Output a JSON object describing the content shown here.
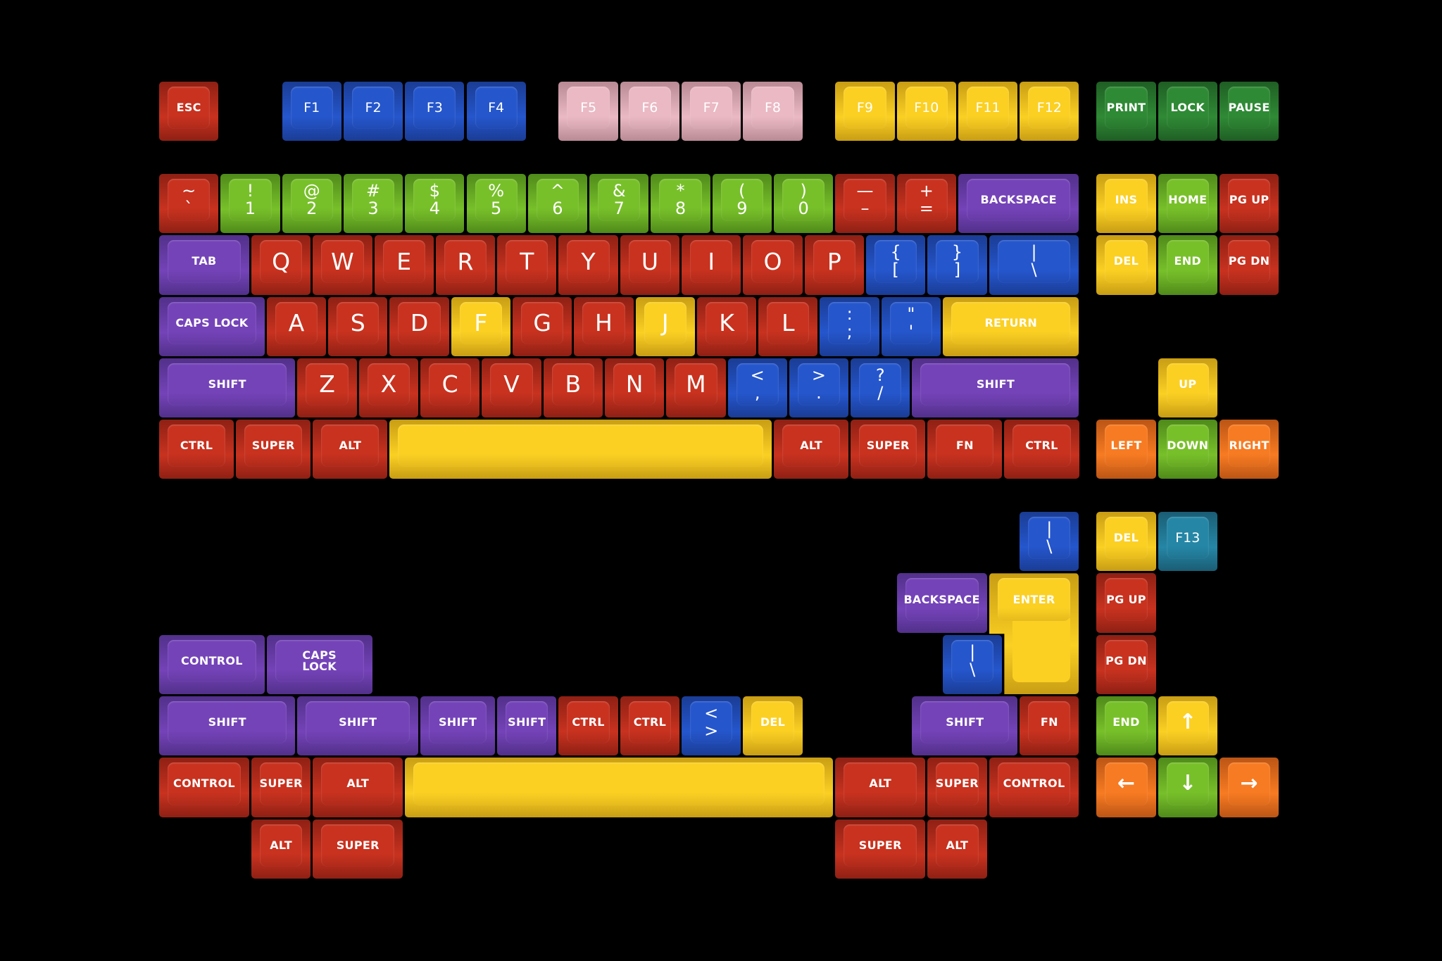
{
  "colors": {
    "red": [
      "#c8321f",
      "#8e2014"
    ],
    "green": [
      "#78c02a",
      "#4f8a1a"
    ],
    "blue": [
      "#2556cc",
      "#1a3c94"
    ],
    "pink": [
      "#eab9c4",
      "#b98a94"
    ],
    "yellow": [
      "#fbd023",
      "#c89d14"
    ],
    "purple": [
      "#7443b8",
      "#52308a"
    ],
    "darkgreen": [
      "#2f8a35",
      "#1f5e24"
    ],
    "orange": [
      "#f77b22",
      "#bb5515"
    ],
    "teal": [
      "#2586a6",
      "#1a5d74"
    ]
  },
  "keys": [
    {
      "l": [
        "ESC"
      ],
      "c": "red"
    },
    {
      "l": [
        "F1"
      ],
      "c": "blue"
    },
    {
      "l": [
        "F2"
      ],
      "c": "blue"
    },
    {
      "l": [
        "F3"
      ],
      "c": "blue"
    },
    {
      "l": [
        "F4"
      ],
      "c": "blue"
    },
    {
      "l": [
        "F5"
      ],
      "c": "pink"
    },
    {
      "l": [
        "F6"
      ],
      "c": "pink"
    },
    {
      "l": [
        "F7"
      ],
      "c": "pink"
    },
    {
      "l": [
        "F8"
      ],
      "c": "pink"
    },
    {
      "l": [
        "F9"
      ],
      "c": "yellow"
    },
    {
      "l": [
        "F10"
      ],
      "c": "yellow"
    },
    {
      "l": [
        "F11"
      ],
      "c": "yellow"
    },
    {
      "l": [
        "F12"
      ],
      "c": "yellow"
    },
    {
      "l": [
        "PRINT"
      ],
      "c": "darkgreen"
    },
    {
      "l": [
        "LOCK"
      ],
      "c": "darkgreen"
    },
    {
      "l": [
        "PAUSE"
      ],
      "c": "darkgreen"
    },
    {
      "l": [
        "~",
        "`"
      ],
      "c": "red"
    },
    {
      "l": [
        "!",
        "1"
      ],
      "c": "green"
    },
    {
      "l": [
        "@",
        "2"
      ],
      "c": "green"
    },
    {
      "l": [
        "#",
        "3"
      ],
      "c": "green"
    },
    {
      "l": [
        "$",
        "4"
      ],
      "c": "green"
    },
    {
      "l": [
        "%",
        "5"
      ],
      "c": "green"
    },
    {
      "l": [
        "^",
        "6"
      ],
      "c": "green"
    },
    {
      "l": [
        "&",
        "7"
      ],
      "c": "green"
    },
    {
      "l": [
        "*",
        "8"
      ],
      "c": "green"
    },
    {
      "l": [
        "(",
        "9"
      ],
      "c": "green"
    },
    {
      "l": [
        ")",
        "0"
      ],
      "c": "green"
    },
    {
      "l": [
        "—",
        "–"
      ],
      "c": "red"
    },
    {
      "l": [
        "+",
        "="
      ],
      "c": "red"
    },
    {
      "l": [
        "BACKSPACE"
      ],
      "c": "purple"
    },
    {
      "l": [
        "INS"
      ],
      "c": "yellow"
    },
    {
      "l": [
        "HOME"
      ],
      "c": "green"
    },
    {
      "l": [
        "PG UP"
      ],
      "c": "red"
    },
    {
      "l": [
        "TAB"
      ],
      "c": "purple"
    },
    {
      "l": [
        "Q"
      ],
      "c": "red"
    },
    {
      "l": [
        "W"
      ],
      "c": "red"
    },
    {
      "l": [
        "E"
      ],
      "c": "red"
    },
    {
      "l": [
        "R"
      ],
      "c": "red"
    },
    {
      "l": [
        "T"
      ],
      "c": "red"
    },
    {
      "l": [
        "Y"
      ],
      "c": "red"
    },
    {
      "l": [
        "U"
      ],
      "c": "red"
    },
    {
      "l": [
        "I"
      ],
      "c": "red"
    },
    {
      "l": [
        "O"
      ],
      "c": "red"
    },
    {
      "l": [
        "P"
      ],
      "c": "red"
    },
    {
      "l": [
        "{",
        "["
      ],
      "c": "blue"
    },
    {
      "l": [
        "}",
        "]"
      ],
      "c": "blue"
    },
    {
      "l": [
        "|",
        "\\"
      ],
      "c": "blue"
    },
    {
      "l": [
        "DEL"
      ],
      "c": "yellow"
    },
    {
      "l": [
        "END"
      ],
      "c": "green"
    },
    {
      "l": [
        "PG DN"
      ],
      "c": "red"
    },
    {
      "l": [
        "CAPS LOCK"
      ],
      "c": "purple"
    },
    {
      "l": [
        "A"
      ],
      "c": "red"
    },
    {
      "l": [
        "S"
      ],
      "c": "red"
    },
    {
      "l": [
        "D"
      ],
      "c": "red"
    },
    {
      "l": [
        "F"
      ],
      "c": "yellow"
    },
    {
      "l": [
        "G"
      ],
      "c": "red"
    },
    {
      "l": [
        "H"
      ],
      "c": "red"
    },
    {
      "l": [
        "J"
      ],
      "c": "yellow"
    },
    {
      "l": [
        "K"
      ],
      "c": "red"
    },
    {
      "l": [
        "L"
      ],
      "c": "red"
    },
    {
      "l": [
        ":",
        ";"
      ],
      "c": "blue"
    },
    {
      "l": [
        "\"",
        "'"
      ],
      "c": "blue"
    },
    {
      "l": [
        "RETURN"
      ],
      "c": "yellow"
    },
    {
      "l": [
        "SHIFT"
      ],
      "c": "purple"
    },
    {
      "l": [
        "Z"
      ],
      "c": "red"
    },
    {
      "l": [
        "X"
      ],
      "c": "red"
    },
    {
      "l": [
        "C"
      ],
      "c": "red"
    },
    {
      "l": [
        "V"
      ],
      "c": "red"
    },
    {
      "l": [
        "B"
      ],
      "c": "red"
    },
    {
      "l": [
        "N"
      ],
      "c": "red"
    },
    {
      "l": [
        "M"
      ],
      "c": "red"
    },
    {
      "l": [
        "<",
        ","
      ],
      "c": "blue"
    },
    {
      "l": [
        ">",
        "."
      ],
      "c": "blue"
    },
    {
      "l": [
        "?",
        "/"
      ],
      "c": "blue"
    },
    {
      "l": [
        "SHIFT"
      ],
      "c": "purple"
    },
    {
      "l": [
        "UP"
      ],
      "c": "yellow"
    },
    {
      "l": [
        "CTRL"
      ],
      "c": "red"
    },
    {
      "l": [
        "SUPER"
      ],
      "c": "red"
    },
    {
      "l": [
        "ALT"
      ],
      "c": "red"
    },
    {
      "l": [
        ""
      ],
      "c": "yellow"
    },
    {
      "l": [
        "ALT"
      ],
      "c": "red"
    },
    {
      "l": [
        "SUPER"
      ],
      "c": "red"
    },
    {
      "l": [
        "FN"
      ],
      "c": "red"
    },
    {
      "l": [
        "CTRL"
      ],
      "c": "red"
    },
    {
      "l": [
        "LEFT"
      ],
      "c": "orange"
    },
    {
      "l": [
        "DOWN"
      ],
      "c": "green"
    },
    {
      "l": [
        "RIGHT"
      ],
      "c": "orange"
    },
    {
      "l": [
        "|",
        "\\"
      ],
      "c": "blue"
    },
    {
      "l": [
        "DEL"
      ],
      "c": "yellow"
    },
    {
      "l": [
        "F13"
      ],
      "c": "teal"
    },
    {
      "l": [
        "BACKSPACE"
      ],
      "c": "purple"
    },
    {
      "l": [
        "ENTER"
      ],
      "c": "yellow"
    },
    {
      "l": [
        "PG UP"
      ],
      "c": "red"
    },
    {
      "l": [
        "CONTROL"
      ],
      "c": "purple"
    },
    {
      "l": [
        "CAPS",
        "LOCK"
      ],
      "c": "purple"
    },
    {
      "l": [
        "|",
        "\\"
      ],
      "c": "blue"
    },
    {
      "l": [
        "PG DN"
      ],
      "c": "red"
    },
    {
      "l": [
        "SHIFT"
      ],
      "c": "purple"
    },
    {
      "l": [
        "SHIFT"
      ],
      "c": "purple"
    },
    {
      "l": [
        "SHIFT"
      ],
      "c": "purple"
    },
    {
      "l": [
        "SHIFT"
      ],
      "c": "purple"
    },
    {
      "l": [
        "CTRL"
      ],
      "c": "red"
    },
    {
      "l": [
        "CTRL"
      ],
      "c": "red"
    },
    {
      "l": [
        "<",
        ">"
      ],
      "c": "blue"
    },
    {
      "l": [
        "DEL"
      ],
      "c": "yellow"
    },
    {
      "l": [
        "SHIFT"
      ],
      "c": "purple"
    },
    {
      "l": [
        "FN"
      ],
      "c": "red"
    },
    {
      "l": [
        "END"
      ],
      "c": "green"
    },
    {
      "l": [
        "↑"
      ],
      "c": "yellow"
    },
    {
      "l": [
        "CONTROL"
      ],
      "c": "red"
    },
    {
      "l": [
        "SUPER"
      ],
      "c": "red"
    },
    {
      "l": [
        "ALT"
      ],
      "c": "red"
    },
    {
      "l": [
        ""
      ],
      "c": "yellow"
    },
    {
      "l": [
        "ALT"
      ],
      "c": "red"
    },
    {
      "l": [
        "SUPER"
      ],
      "c": "red"
    },
    {
      "l": [
        "CONTROL"
      ],
      "c": "red"
    },
    {
      "l": [
        "←"
      ],
      "c": "orange"
    },
    {
      "l": [
        "↓"
      ],
      "c": "green"
    },
    {
      "l": [
        "→"
      ],
      "c": "orange"
    },
    {
      "l": [
        "ALT"
      ],
      "c": "red"
    },
    {
      "l": [
        "SUPER"
      ],
      "c": "red"
    },
    {
      "l": [
        "SUPER"
      ],
      "c": "red"
    },
    {
      "l": [
        "ALT"
      ],
      "c": "red"
    }
  ]
}
